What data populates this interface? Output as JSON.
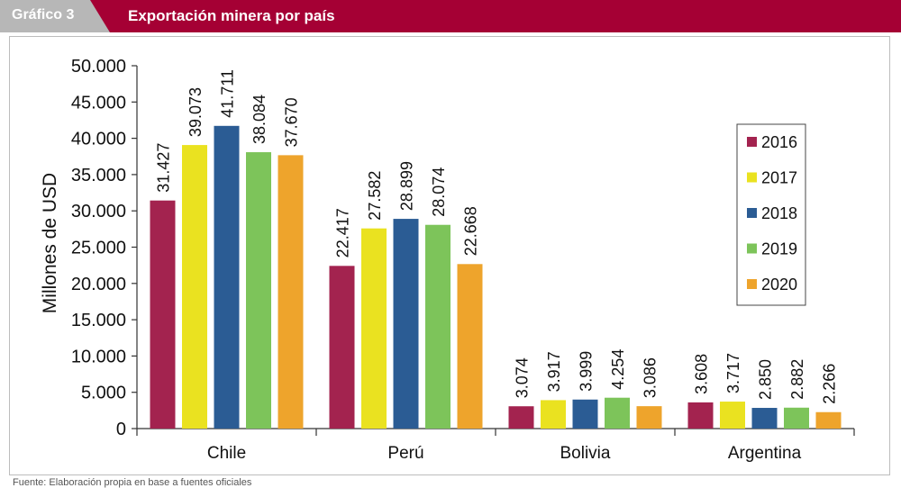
{
  "header": {
    "label": "Gráfico 3",
    "title": "Exportación minera por país"
  },
  "footer": {
    "source": "Fuente: Elaboración propia en base a fuentes oficiales"
  },
  "colors": {
    "header_bg": "#a50034",
    "tab_bg": "#b7b7b7",
    "series": [
      "#a3234f",
      "#eae220",
      "#2b5c94",
      "#7dc45a",
      "#eea42c"
    ]
  },
  "chart_data": {
    "type": "bar",
    "title": "",
    "xlabel": "",
    "ylabel": "Millones de USD",
    "ylim": [
      0,
      50000
    ],
    "yticks": [
      "0",
      "5.000",
      "10.000",
      "15.000",
      "20.000",
      "25.000",
      "30.000",
      "35.000",
      "40.000",
      "45.000",
      "50.000"
    ],
    "categories": [
      "Chile",
      "Perú",
      "Bolivia",
      "Argentina"
    ],
    "legend_position": "right",
    "grid": false,
    "series": [
      {
        "name": "2016",
        "values": [
          31427,
          22417,
          3074,
          3608
        ],
        "labels": [
          "31.427",
          "22.417",
          "3.074",
          "3.608"
        ]
      },
      {
        "name": "2017",
        "values": [
          39073,
          27582,
          3917,
          3717
        ],
        "labels": [
          "39.073",
          "27.582",
          "3.917",
          "3.717"
        ]
      },
      {
        "name": "2018",
        "values": [
          41711,
          28899,
          3999,
          2850
        ],
        "labels": [
          "41.711",
          "28.899",
          "3.999",
          "2.850"
        ]
      },
      {
        "name": "2019",
        "values": [
          38084,
          28074,
          4254,
          2882
        ],
        "labels": [
          "38.084",
          "28.074",
          "4.254",
          "2.882"
        ]
      },
      {
        "name": "2020",
        "values": [
          37670,
          22668,
          3086,
          2266
        ],
        "labels": [
          "37.670",
          "22.668",
          "3.086",
          "2.266"
        ]
      }
    ]
  }
}
